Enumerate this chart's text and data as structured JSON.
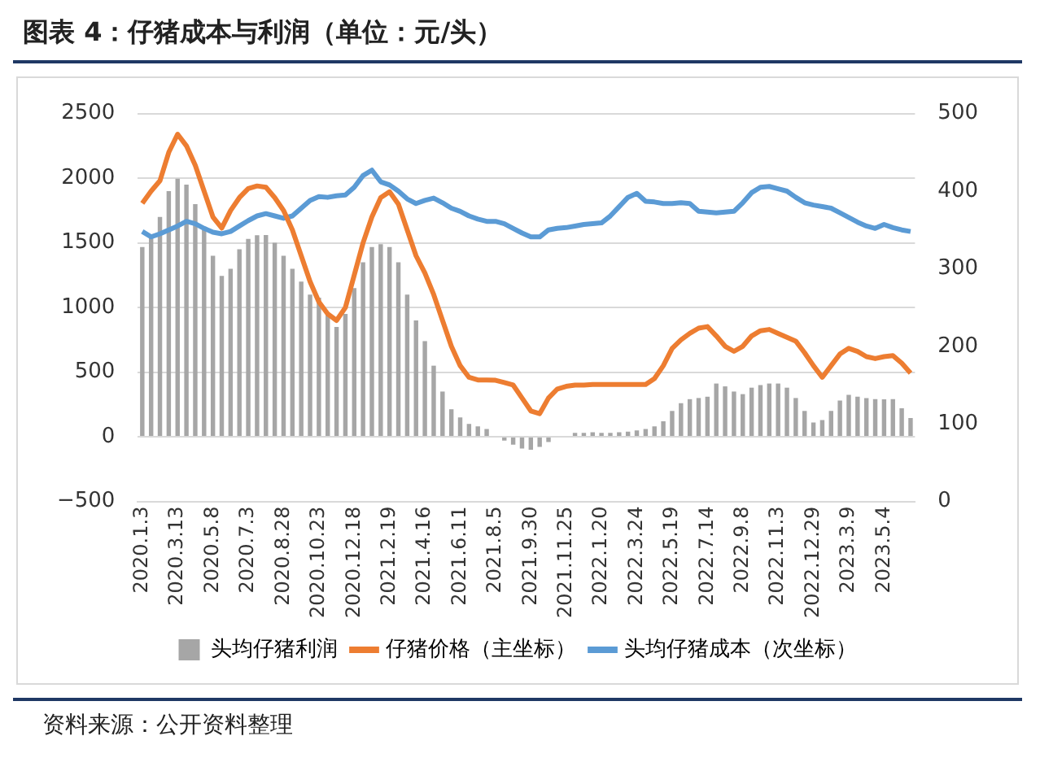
{
  "chart_data": {
    "type": "bar",
    "title": "图表 4：仔猪成本与利润（单位：元/头）",
    "categories": [
      "2020.1.3",
      null,
      null,
      null,
      "2020.3.13",
      null,
      null,
      null,
      "2020.5.8",
      null,
      null,
      null,
      "2020.7.3",
      null,
      null,
      null,
      "2020.8.28",
      null,
      null,
      null,
      "2020.10.23",
      null,
      null,
      null,
      "2020.12.18",
      null,
      null,
      null,
      "2021.2.19",
      null,
      null,
      null,
      "2021.4.16",
      null,
      null,
      null,
      "2021.6.11",
      null,
      null,
      null,
      "2021.8.5",
      null,
      null,
      null,
      "2021.9.30",
      null,
      null,
      null,
      "2021.11.25",
      null,
      null,
      null,
      "2022.1.20",
      null,
      null,
      null,
      "2022.3.24",
      null,
      null,
      null,
      "2022.5.19",
      null,
      null,
      null,
      "2022.7.14",
      null,
      null,
      null,
      "2022.9.8",
      null,
      null,
      null,
      "2022.11.3",
      null,
      null,
      null,
      "2022.12.29",
      null,
      null,
      null,
      "2023.3.9",
      null,
      null,
      null,
      "2023.5.4",
      null,
      null,
      null
    ],
    "series": [
      {
        "name": "头均仔猪利润",
        "color": "#a6a6a6",
        "values": [
          1468,
          1550,
          1700,
          1900,
          1996,
          1950,
          1800,
          1600,
          1400,
          1244,
          1300,
          1450,
          1530,
          1558,
          1560,
          1500,
          1400,
          1300,
          1200,
          1100,
          1076,
          950,
          850,
          950,
          1150,
          1350,
          1468,
          1490,
          1468,
          1350,
          1100,
          900,
          740,
          550,
          350,
          213,
          150,
          100,
          80,
          60,
          null,
          -30,
          -60,
          -90,
          -100,
          -78,
          -40,
          null,
          null,
          30,
          30,
          35,
          30,
          30,
          35,
          40,
          50,
          60,
          80,
          120,
          200,
          260,
          291,
          300,
          310,
          412,
          390,
          350,
          330,
          380,
          400,
          412,
          412,
          380,
          300,
          200,
          110,
          130,
          200,
          280,
          325,
          310,
          300,
          291,
          290,
          291,
          220,
          146
        ]
      },
      {
        "name": "仔猪价格（主坐标）",
        "type": "line",
        "color": "#ed7d31",
        "values": [
          1805,
          1900,
          1980,
          2200,
          2340,
          2250,
          2100,
          1900,
          1700,
          1614,
          1750,
          1850,
          1920,
          1940,
          1930,
          1850,
          1750,
          1600,
          1400,
          1200,
          1043,
          950,
          900,
          1000,
          1250,
          1500,
          1700,
          1850,
          1895,
          1800,
          1600,
          1400,
          1267,
          1100,
          900,
          700,
          550,
          460,
          440,
          440,
          437,
          420,
          400,
          300,
          200,
          179,
          300,
          370,
          390,
          400,
          400,
          404,
          404,
          404,
          404,
          404,
          404,
          404,
          450,
          550,
          684,
          750,
          800,
          840,
          852,
          780,
          700,
          661,
          700,
          780,
          820,
          830,
          800,
          770,
          740,
          650,
          550,
          460,
          550,
          640,
          684,
          660,
          620,
          605,
          620,
          628,
          570,
          493
        ]
      },
      {
        "name": "头均仔猪成本（次坐标）",
        "type": "line",
        "axis": "y2",
        "color": "#5b9bd5",
        "values": [
          348,
          341,
          345,
          350,
          355,
          361,
          358,
          352,
          347,
          345,
          348,
          355,
          362,
          368,
          371,
          368,
          365,
          368,
          378,
          388,
          393,
          392,
          394,
          395,
          405,
          420,
          427,
          412,
          408,
          400,
          390,
          384,
          388,
          391,
          385,
          378,
          374,
          368,
          364,
          361,
          361,
          358,
          352,
          346,
          341,
          341,
          350,
          352,
          353,
          355,
          357,
          358,
          359,
          368,
          380,
          392,
          397,
          387,
          386,
          384,
          384,
          385,
          384,
          374,
          373,
          372,
          373,
          374,
          385,
          398,
          405,
          406,
          403,
          400,
          392,
          385,
          382,
          380,
          378,
          372,
          366,
          360,
          355,
          352,
          357,
          353,
          350,
          348
        ]
      }
    ],
    "ylim": [
      -500,
      2500
    ],
    "yticks": [
      {
        "value": -500,
        "label": "−500"
      },
      0,
      500,
      1000,
      1500,
      2000,
      2500
    ],
    "y2lim": [
      0,
      500
    ],
    "y2ticks": [
      0,
      100,
      200,
      300,
      400,
      500
    ],
    "grid": "y",
    "legend": "bottom",
    "marker": "none",
    "annotations": [
      "资料来源：公开资料整理"
    ]
  }
}
